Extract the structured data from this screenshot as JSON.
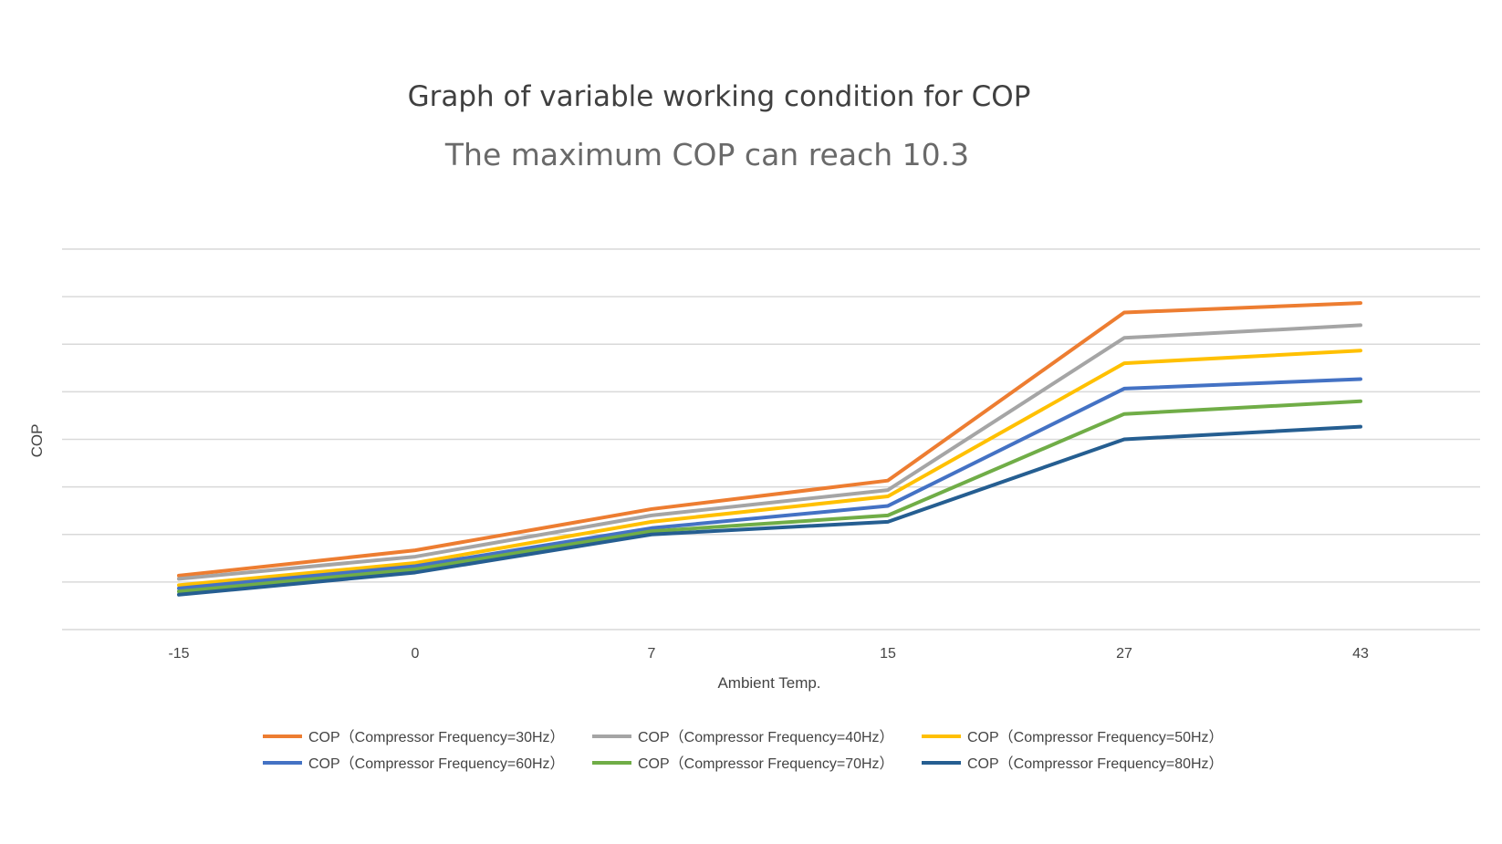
{
  "chart_data": {
    "type": "line",
    "title": "Graph of variable working condition for COP",
    "subtitle": "The maximum COP can reach 10.3",
    "xlabel": "Ambient Temp.",
    "ylabel": "COP",
    "categories": [
      "-15",
      "0",
      "7",
      "15",
      "27",
      "43"
    ],
    "ylim": [
      0,
      12
    ],
    "y_tick_labels_shown": false,
    "grid": true,
    "legend_position": "bottom",
    "series": [
      {
        "name": "COP（Compressor Frequency=30Hz）",
        "color": "#ED7D31",
        "values": [
          1.7,
          2.5,
          3.8,
          4.7,
          10.0,
          10.3
        ]
      },
      {
        "name": "COP（Compressor Frequency=40Hz）",
        "color": "#A5A5A5",
        "values": [
          1.6,
          2.3,
          3.6,
          4.4,
          9.2,
          9.6
        ]
      },
      {
        "name": "COP（Compressor Frequency=50Hz）",
        "color": "#FFC000",
        "values": [
          1.4,
          2.1,
          3.4,
          4.2,
          8.4,
          8.8
        ]
      },
      {
        "name": "COP（Compressor Frequency=60Hz）",
        "color": "#4472C4",
        "values": [
          1.3,
          2.0,
          3.2,
          3.9,
          7.6,
          7.9
        ]
      },
      {
        "name": "COP（Compressor Frequency=70Hz）",
        "color": "#70AD47",
        "values": [
          1.2,
          1.9,
          3.1,
          3.6,
          6.8,
          7.2
        ]
      },
      {
        "name": "COP（Compressor Frequency=80Hz）",
        "color": "#255E91",
        "values": [
          1.1,
          1.8,
          3.0,
          3.4,
          6.0,
          6.4
        ]
      }
    ]
  }
}
